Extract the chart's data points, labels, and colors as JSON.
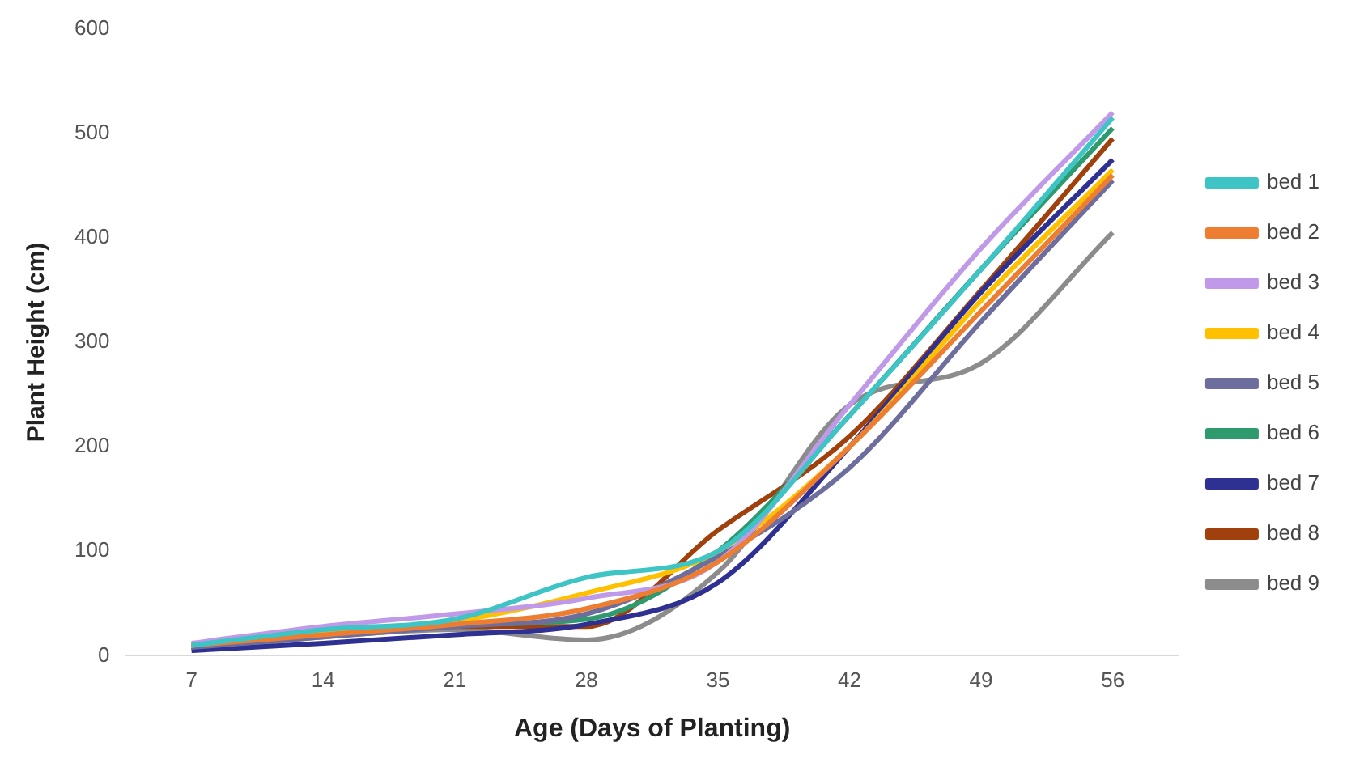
{
  "chart_data": {
    "type": "line",
    "xlabel": "Age (Days of Planting)",
    "ylabel": "Plant Height (cm)",
    "categories": [
      "7",
      "14",
      "21",
      "28",
      "35",
      "42",
      "49",
      "56"
    ],
    "series": [
      {
        "name": "bed 1",
        "color": "#3ec4c4",
        "values": [
          10,
          25,
          35,
          75,
          100,
          230,
          370,
          515
        ]
      },
      {
        "name": "bed 2",
        "color": "#ed7d31",
        "values": [
          10,
          20,
          30,
          45,
          90,
          200,
          330,
          460
        ]
      },
      {
        "name": "bed 3",
        "color": "#c09ae8",
        "values": [
          12,
          28,
          40,
          55,
          90,
          240,
          390,
          520
        ]
      },
      {
        "name": "bed 4",
        "color": "#ffc000",
        "values": [
          10,
          22,
          33,
          60,
          100,
          200,
          340,
          465
        ]
      },
      {
        "name": "bed 5",
        "color": "#6e6e9e",
        "values": [
          8,
          18,
          28,
          40,
          95,
          180,
          320,
          455
        ]
      },
      {
        "name": "bed 6",
        "color": "#2e9a6e",
        "values": [
          10,
          20,
          30,
          35,
          100,
          230,
          370,
          505
        ]
      },
      {
        "name": "bed 7",
        "color": "#2e3192",
        "values": [
          5,
          12,
          20,
          30,
          70,
          200,
          348,
          475
        ]
      },
      {
        "name": "bed 8",
        "color": "#a0410d",
        "values": [
          8,
          20,
          28,
          28,
          120,
          210,
          350,
          495
        ]
      },
      {
        "name": "bed 9",
        "color": "#8c8c8c",
        "values": [
          5,
          18,
          25,
          15,
          80,
          240,
          280,
          405
        ]
      }
    ],
    "ylim": [
      0,
      600
    ],
    "yticks": [
      0,
      100,
      200,
      300,
      400,
      500,
      600
    ],
    "grid": false,
    "legend": "right",
    "marker": "none",
    "line_style": "solid"
  }
}
